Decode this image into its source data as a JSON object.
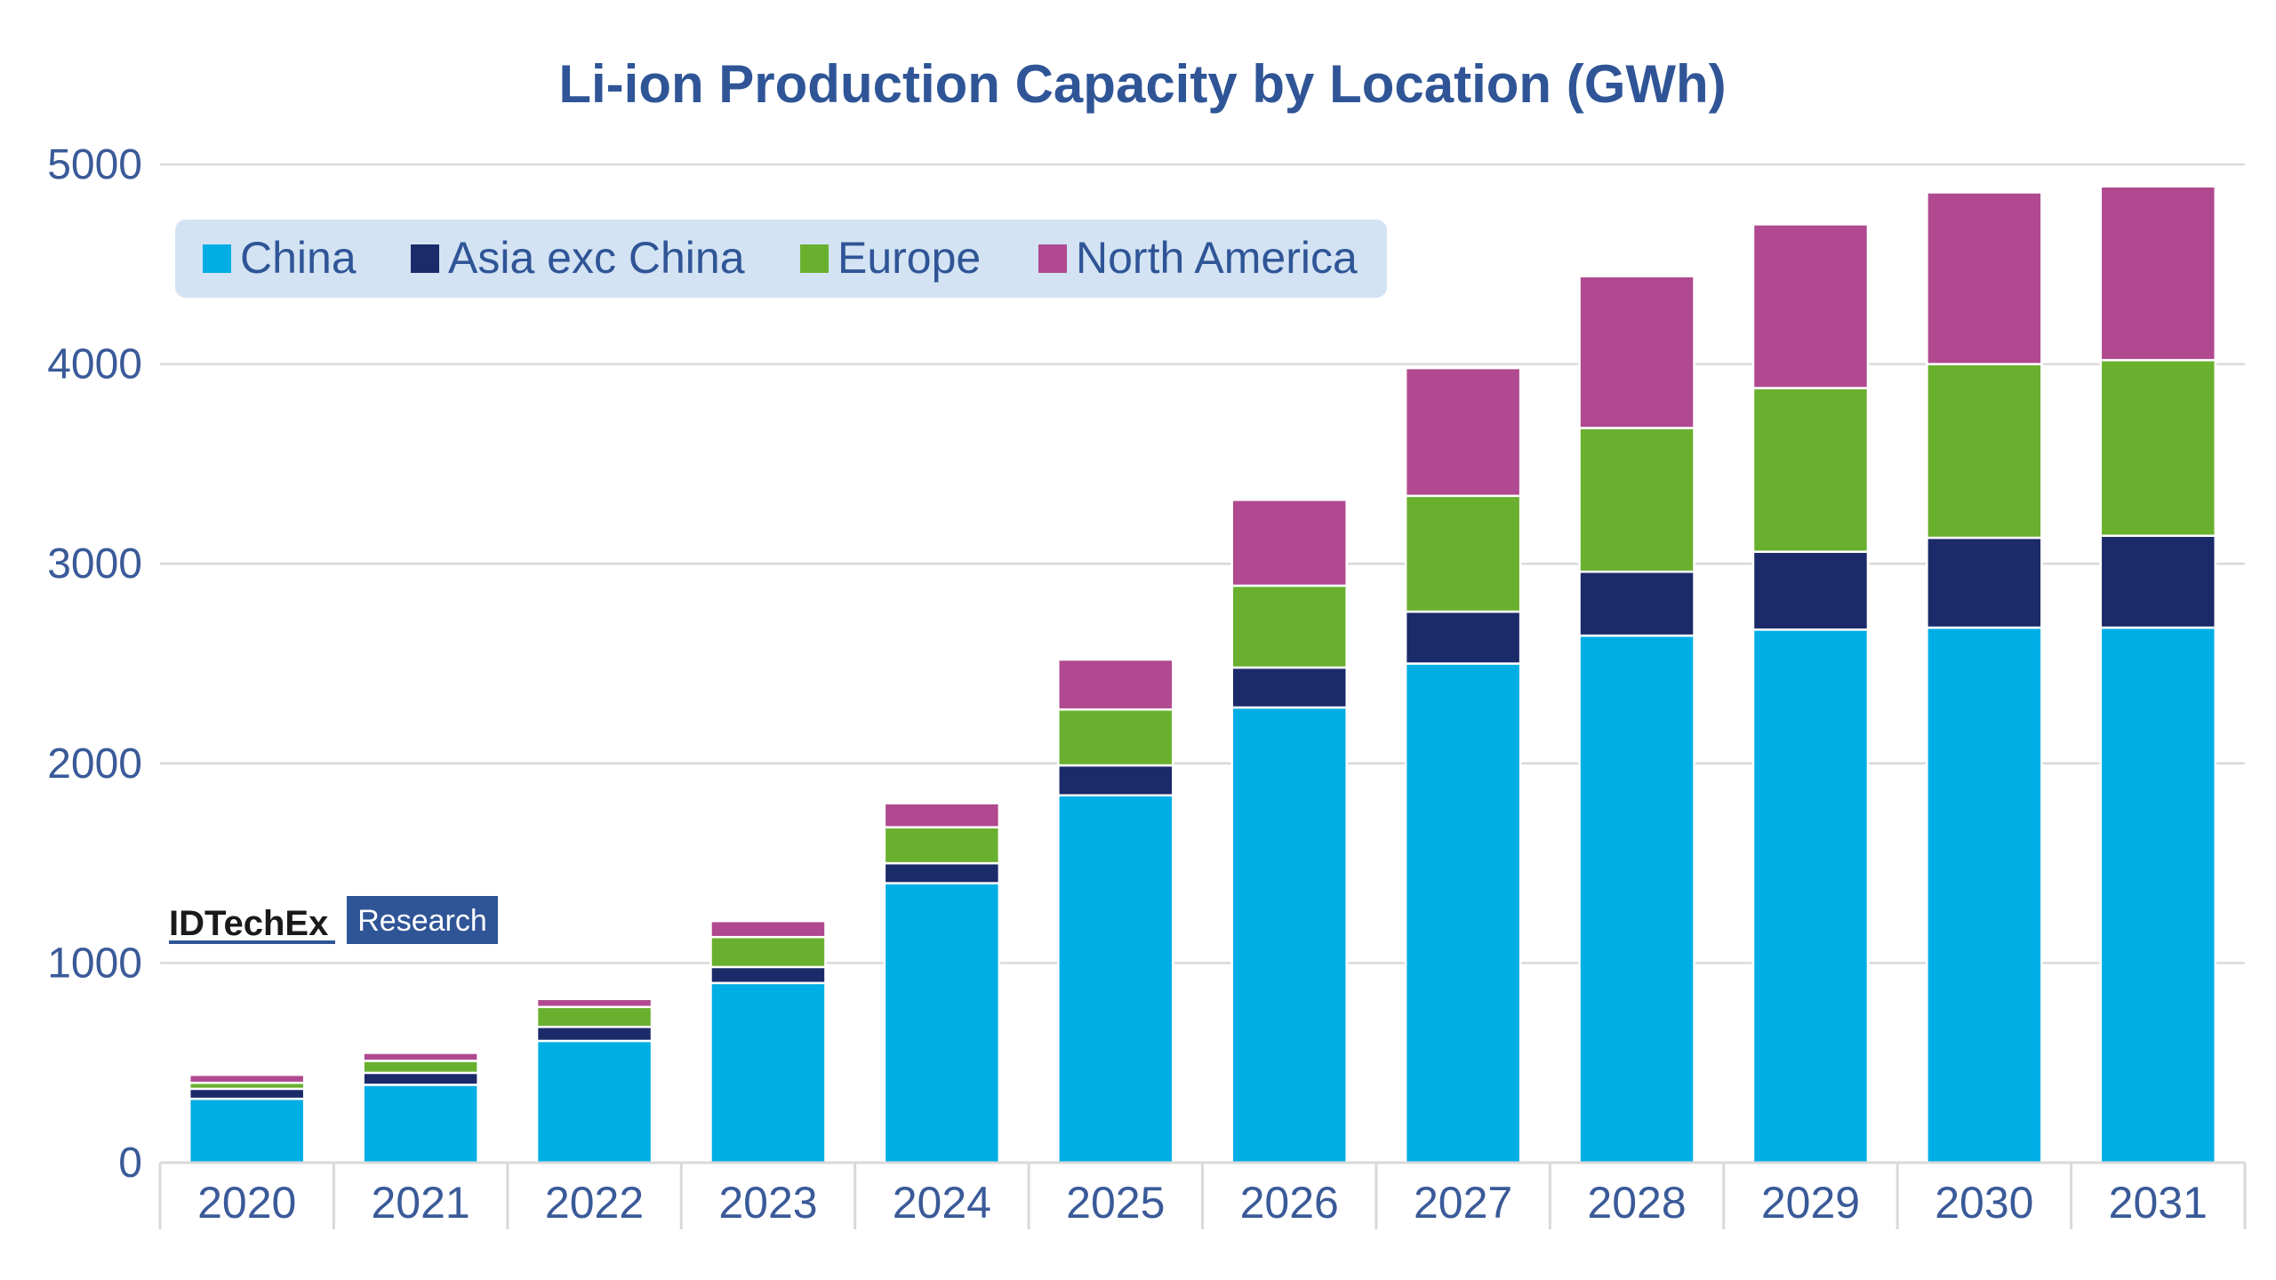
{
  "chart_data": {
    "type": "bar",
    "stacked": true,
    "title": "Li-ion Production Capacity by Location (GWh)",
    "xlabel": "",
    "ylabel": "",
    "ylim": [
      0,
      5000
    ],
    "yticks": [
      0,
      1000,
      2000,
      3000,
      4000,
      5000
    ],
    "grid": true,
    "legend_position": "top-left",
    "categories": [
      "2020",
      "2021",
      "2022",
      "2023",
      "2024",
      "2025",
      "2026",
      "2027",
      "2028",
      "2029",
      "2030",
      "2031"
    ],
    "series": [
      {
        "name": "China",
        "color": "#00aee6",
        "values": [
          320,
          390,
          610,
          900,
          1400,
          1840,
          2280,
          2500,
          2640,
          2670,
          2680,
          2680
        ]
      },
      {
        "name": "Asia exc China",
        "color": "#1b2a69",
        "values": [
          50,
          60,
          70,
          80,
          100,
          150,
          200,
          260,
          320,
          390,
          450,
          460
        ]
      },
      {
        "name": "Europe",
        "color": "#6ab02f",
        "values": [
          30,
          60,
          100,
          150,
          180,
          280,
          410,
          580,
          720,
          820,
          870,
          880
        ]
      },
      {
        "name": "North America",
        "color": "#b04990",
        "values": [
          40,
          40,
          40,
          80,
          120,
          250,
          430,
          640,
          760,
          820,
          860,
          870
        ]
      }
    ]
  },
  "logo": {
    "name": "IDTechEx",
    "tag": "Research"
  }
}
